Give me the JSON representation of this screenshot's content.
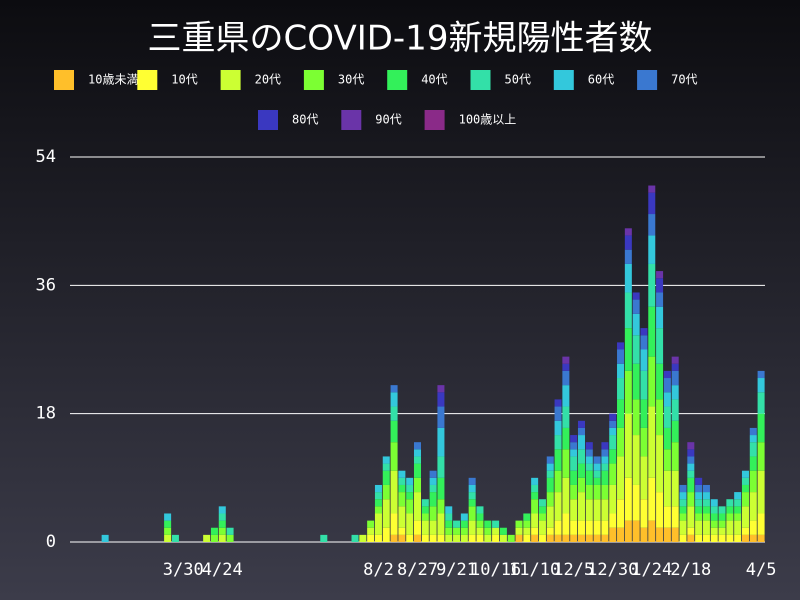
{
  "chart_data": {
    "type": "stacked-bar",
    "title": "三重県のCOVID-19新規陽性者数",
    "categories": [
      null,
      null,
      null,
      null,
      null,
      null,
      null,
      null,
      null,
      null,
      null,
      null,
      null,
      null,
      "3/30",
      null,
      null,
      null,
      null,
      "4/24",
      null,
      null,
      null,
      null,
      null,
      null,
      null,
      null,
      null,
      null,
      null,
      null,
      null,
      null,
      null,
      null,
      null,
      null,
      null,
      "8/2",
      null,
      null,
      null,
      null,
      "8/27",
      null,
      null,
      null,
      null,
      "9/21",
      null,
      null,
      null,
      null,
      "10/16",
      null,
      null,
      null,
      null,
      "11/10",
      null,
      null,
      null,
      null,
      "12/5",
      null,
      null,
      null,
      null,
      "12/30",
      null,
      null,
      null,
      null,
      "1/24",
      null,
      null,
      null,
      null,
      "2/18",
      null,
      null,
      null,
      null,
      null,
      null,
      null,
      null,
      "4/5"
    ],
    "series": [
      {
        "name": "10歳未満",
        "color": "#ffbf2a",
        "values": [
          0,
          0,
          0,
          0,
          0,
          0,
          0,
          0,
          0,
          0,
          0,
          0,
          0,
          0,
          0,
          0,
          0,
          0,
          0,
          0,
          0,
          0,
          0,
          0,
          0,
          0,
          0,
          0,
          0,
          0,
          0,
          0,
          0,
          0,
          0,
          0,
          0,
          0,
          0,
          0,
          0,
          1,
          1,
          0,
          1,
          0,
          0,
          0,
          0,
          0,
          0,
          0,
          0,
          0,
          0,
          0,
          0,
          1,
          0,
          1,
          0,
          1,
          1,
          1,
          1,
          1,
          1,
          1,
          1,
          2,
          2,
          3,
          3,
          2,
          3,
          2,
          2,
          2,
          0,
          1,
          0,
          0,
          0,
          0,
          0,
          0,
          1,
          1,
          1
        ]
      },
      {
        "name": "10代",
        "color": "#ffff33",
        "values": [
          0,
          0,
          0,
          0,
          0,
          0,
          0,
          0,
          0,
          0,
          0,
          0,
          0,
          0,
          0,
          0,
          0,
          0,
          0,
          0,
          0,
          0,
          0,
          0,
          0,
          0,
          0,
          0,
          0,
          0,
          0,
          0,
          0,
          0,
          0,
          0,
          0,
          0,
          1,
          1,
          2,
          3,
          1,
          1,
          2,
          1,
          1,
          1,
          0,
          0,
          0,
          1,
          1,
          0,
          1,
          0,
          0,
          0,
          1,
          1,
          1,
          1,
          2,
          3,
          2,
          2,
          2,
          2,
          2,
          2,
          4,
          6,
          5,
          4,
          6,
          5,
          3,
          3,
          1,
          1,
          1,
          1,
          1,
          1,
          1,
          1,
          1,
          2,
          3
        ]
      },
      {
        "name": "20代",
        "color": "#ccff33",
        "values": [
          0,
          0,
          0,
          0,
          0,
          0,
          0,
          0,
          0,
          0,
          0,
          0,
          1,
          0,
          0,
          0,
          0,
          1,
          0,
          1,
          0,
          0,
          0,
          0,
          0,
          0,
          0,
          0,
          0,
          0,
          0,
          0,
          0,
          0,
          0,
          0,
          0,
          1,
          1,
          3,
          4,
          6,
          3,
          3,
          4,
          2,
          2,
          3,
          1,
          1,
          1,
          2,
          1,
          1,
          1,
          1,
          0,
          1,
          1,
          2,
          2,
          3,
          4,
          5,
          3,
          4,
          3,
          3,
          3,
          4,
          6,
          9,
          7,
          6,
          10,
          8,
          5,
          5,
          2,
          3,
          2,
          2,
          1,
          1,
          2,
          2,
          3,
          4,
          6
        ]
      },
      {
        "name": "30代",
        "color": "#7cff33",
        "values": [
          0,
          0,
          0,
          0,
          0,
          0,
          0,
          0,
          0,
          0,
          0,
          0,
          1,
          0,
          0,
          0,
          0,
          0,
          1,
          1,
          1,
          0,
          0,
          0,
          0,
          0,
          0,
          0,
          0,
          0,
          0,
          0,
          0,
          0,
          0,
          0,
          0,
          0,
          1,
          1,
          2,
          4,
          2,
          2,
          2,
          1,
          2,
          2,
          1,
          1,
          1,
          2,
          1,
          1,
          0,
          0,
          1,
          1,
          1,
          2,
          1,
          2,
          3,
          4,
          2,
          2,
          2,
          2,
          2,
          3,
          4,
          6,
          5,
          4,
          7,
          5,
          3,
          4,
          1,
          2,
          1,
          1,
          1,
          1,
          1,
          1,
          2,
          3,
          4
        ]
      },
      {
        "name": "40代",
        "color": "#33f05a",
        "values": [
          0,
          0,
          0,
          0,
          0,
          0,
          0,
          0,
          0,
          0,
          0,
          0,
          1,
          0,
          0,
          0,
          0,
          0,
          1,
          1,
          0,
          0,
          0,
          0,
          0,
          0,
          0,
          0,
          0,
          0,
          0,
          0,
          0,
          0,
          0,
          0,
          0,
          0,
          0,
          1,
          2,
          3,
          1,
          1,
          2,
          1,
          2,
          3,
          1,
          0,
          1,
          1,
          1,
          1,
          0,
          1,
          0,
          0,
          1,
          1,
          1,
          2,
          3,
          3,
          2,
          2,
          2,
          1,
          2,
          2,
          4,
          6,
          5,
          4,
          7,
          5,
          3,
          3,
          1,
          2,
          1,
          1,
          1,
          1,
          1,
          1,
          1,
          2,
          4
        ]
      },
      {
        "name": "50代",
        "color": "#33e0a8",
        "values": [
          0,
          0,
          0,
          0,
          0,
          0,
          0,
          0,
          0,
          0,
          0,
          0,
          0,
          1,
          0,
          0,
          0,
          0,
          0,
          1,
          1,
          0,
          0,
          0,
          0,
          0,
          0,
          0,
          0,
          0,
          0,
          0,
          1,
          0,
          0,
          0,
          1,
          0,
          0,
          1,
          1,
          2,
          1,
          1,
          1,
          1,
          1,
          3,
          1,
          1,
          0,
          1,
          1,
          0,
          1,
          0,
          0,
          0,
          0,
          1,
          1,
          1,
          2,
          3,
          2,
          2,
          1,
          1,
          1,
          2,
          3,
          5,
          4,
          4,
          6,
          5,
          3,
          3,
          1,
          1,
          1,
          1,
          1,
          1,
          1,
          1,
          1,
          2,
          3
        ]
      },
      {
        "name": "60代",
        "color": "#33c8dc",
        "values": [
          0,
          0,
          0,
          0,
          1,
          0,
          0,
          0,
          0,
          0,
          0,
          0,
          1,
          0,
          0,
          0,
          0,
          0,
          0,
          1,
          0,
          0,
          0,
          0,
          0,
          0,
          0,
          0,
          0,
          0,
          0,
          0,
          0,
          0,
          0,
          0,
          0,
          0,
          0,
          1,
          1,
          2,
          1,
          1,
          1,
          0,
          1,
          4,
          1,
          0,
          1,
          1,
          0,
          0,
          0,
          0,
          0,
          0,
          0,
          1,
          0,
          1,
          2,
          3,
          1,
          2,
          1,
          1,
          1,
          1,
          2,
          4,
          3,
          3,
          4,
          3,
          2,
          2,
          1,
          1,
          1,
          1,
          1,
          0,
          0,
          1,
          1,
          1,
          2
        ]
      },
      {
        "name": "70代",
        "color": "#3a78d0",
        "values": [
          0,
          0,
          0,
          0,
          0,
          0,
          0,
          0,
          0,
          0,
          0,
          0,
          0,
          0,
          0,
          0,
          0,
          0,
          0,
          0,
          0,
          0,
          0,
          0,
          0,
          0,
          0,
          0,
          0,
          0,
          0,
          0,
          0,
          0,
          0,
          0,
          0,
          0,
          0,
          0,
          0,
          1,
          0,
          0,
          1,
          0,
          1,
          3,
          0,
          0,
          0,
          1,
          0,
          0,
          0,
          0,
          0,
          0,
          0,
          0,
          0,
          1,
          2,
          2,
          1,
          1,
          1,
          1,
          1,
          1,
          2,
          2,
          2,
          2,
          3,
          2,
          2,
          2,
          1,
          1,
          1,
          1,
          0,
          0,
          0,
          0,
          0,
          1,
          1
        ]
      },
      {
        "name": "80代",
        "color": "#3a38c0",
        "values": [
          0,
          0,
          0,
          0,
          0,
          0,
          0,
          0,
          0,
          0,
          0,
          0,
          0,
          0,
          0,
          0,
          0,
          0,
          0,
          0,
          0,
          0,
          0,
          0,
          0,
          0,
          0,
          0,
          0,
          0,
          0,
          0,
          0,
          0,
          0,
          0,
          0,
          0,
          0,
          0,
          0,
          0,
          0,
          0,
          0,
          0,
          0,
          2,
          0,
          0,
          0,
          0,
          0,
          0,
          0,
          0,
          0,
          0,
          0,
          0,
          0,
          0,
          1,
          1,
          1,
          1,
          1,
          0,
          1,
          1,
          1,
          2,
          1,
          1,
          3,
          2,
          1,
          1,
          0,
          1,
          1,
          0,
          0,
          0,
          0,
          0,
          0,
          0,
          0
        ]
      },
      {
        "name": "90代",
        "color": "#6a34a8",
        "values": [
          0,
          0,
          0,
          0,
          0,
          0,
          0,
          0,
          0,
          0,
          0,
          0,
          0,
          0,
          0,
          0,
          0,
          0,
          0,
          0,
          0,
          0,
          0,
          0,
          0,
          0,
          0,
          0,
          0,
          0,
          0,
          0,
          0,
          0,
          0,
          0,
          0,
          0,
          0,
          0,
          0,
          0,
          0,
          0,
          0,
          0,
          0,
          1,
          0,
          0,
          0,
          0,
          0,
          0,
          0,
          0,
          0,
          0,
          0,
          0,
          0,
          0,
          0,
          1,
          0,
          0,
          0,
          0,
          0,
          0,
          0,
          1,
          0,
          0,
          1,
          1,
          0,
          1,
          0,
          1,
          0,
          0,
          0,
          0,
          0,
          0,
          0,
          0,
          0
        ]
      },
      {
        "name": "100歳以上",
        "color": "#8a2a88",
        "values": [
          0,
          0,
          0,
          0,
          0,
          0,
          0,
          0,
          0,
          0,
          0,
          0,
          0,
          0,
          0,
          0,
          0,
          0,
          0,
          0,
          0,
          0,
          0,
          0,
          0,
          0,
          0,
          0,
          0,
          0,
          0,
          0,
          0,
          0,
          0,
          0,
          0,
          0,
          0,
          0,
          0,
          0,
          0,
          0,
          0,
          0,
          0,
          0,
          0,
          0,
          0,
          0,
          0,
          0,
          0,
          0,
          0,
          0,
          0,
          0,
          0,
          0,
          0,
          0,
          0,
          0,
          0,
          0,
          0,
          0,
          0,
          0,
          0,
          0,
          0,
          0,
          0,
          0,
          0,
          0,
          0,
          0,
          0,
          0,
          0,
          0,
          0,
          0,
          0
        ]
      }
    ],
    "ylim": [
      0,
      54
    ],
    "yticks": [
      0,
      18,
      36,
      54
    ],
    "grid": true
  }
}
